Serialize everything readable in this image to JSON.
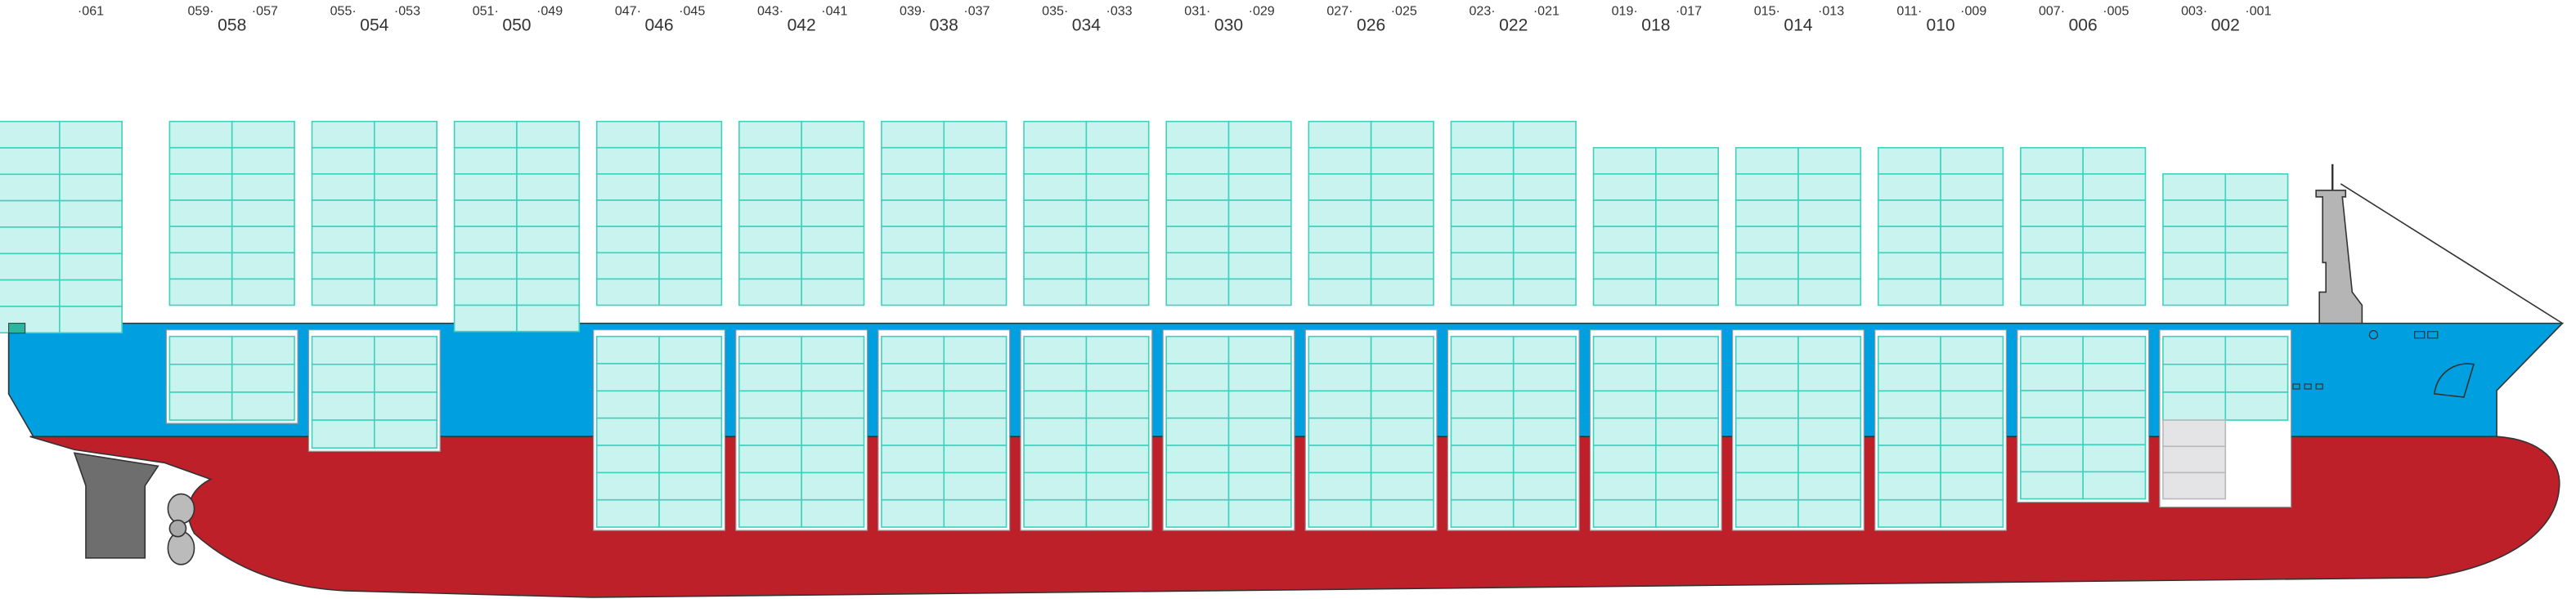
{
  "stern_label": "·061",
  "bays": [
    {
      "number": "058",
      "forward": "059·",
      "aft": "·057"
    },
    {
      "number": "054",
      "forward": "055·",
      "aft": "·053"
    },
    {
      "number": "050",
      "forward": "051·",
      "aft": "·049"
    },
    {
      "number": "046",
      "forward": "047·",
      "aft": "·045"
    },
    {
      "number": "042",
      "forward": "043·",
      "aft": "·041"
    },
    {
      "number": "038",
      "forward": "039·",
      "aft": "·037"
    },
    {
      "number": "034",
      "forward": "035·",
      "aft": "·033"
    },
    {
      "number": "030",
      "forward": "031·",
      "aft": "·029"
    },
    {
      "number": "026",
      "forward": "027·",
      "aft": "·025"
    },
    {
      "number": "022",
      "forward": "023·",
      "aft": "·021"
    },
    {
      "number": "018",
      "forward": "019·",
      "aft": "·017"
    },
    {
      "number": "014",
      "forward": "015·",
      "aft": "·013"
    },
    {
      "number": "010",
      "forward": "011·",
      "aft": "·009"
    },
    {
      "number": "006",
      "forward": "007·",
      "aft": "·005"
    },
    {
      "number": "002",
      "forward": "003·",
      "aft": "·001"
    }
  ]
}
